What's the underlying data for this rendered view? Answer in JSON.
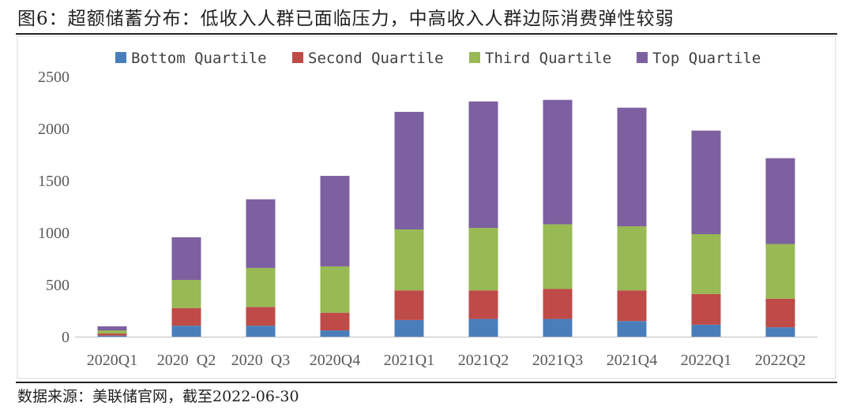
{
  "figure": {
    "title": "图6：超额储蓄分布：低收入人群已面临压力，中高收入人群边际消费弹性较弱",
    "source": "数据来源：美联储官网，截至2022-06-30"
  },
  "chart_data": {
    "type": "bar",
    "stacked": true,
    "title": "",
    "xlabel": "",
    "ylabel": "",
    "ylim": [
      0,
      2500
    ],
    "yticks": [
      0,
      500,
      1000,
      1500,
      2000,
      2500
    ],
    "grid": false,
    "legend_position": "top",
    "categories": [
      "2020Q1",
      "2020  Q2",
      "2020  Q3",
      "2020Q4",
      "2021Q1",
      "2021Q2",
      "2021Q3",
      "2021Q4",
      "2022Q1",
      "2022Q2"
    ],
    "series": [
      {
        "name": "Bottom Quartile",
        "color": "#4a7ebb",
        "values": [
          10,
          105,
          105,
          60,
          160,
          170,
          170,
          150,
          115,
          90
        ]
      },
      {
        "name": "Second Quartile",
        "color": "#be4b48",
        "values": [
          20,
          170,
          180,
          170,
          285,
          275,
          290,
          295,
          295,
          275
        ]
      },
      {
        "name": "Third Quartile",
        "color": "#98b954",
        "values": [
          30,
          270,
          375,
          445,
          585,
          600,
          620,
          615,
          575,
          525
        ]
      },
      {
        "name": "Top Quartile",
        "color": "#7d60a0",
        "values": [
          40,
          410,
          660,
          870,
          1130,
          1215,
          1195,
          1140,
          995,
          825
        ]
      }
    ]
  }
}
